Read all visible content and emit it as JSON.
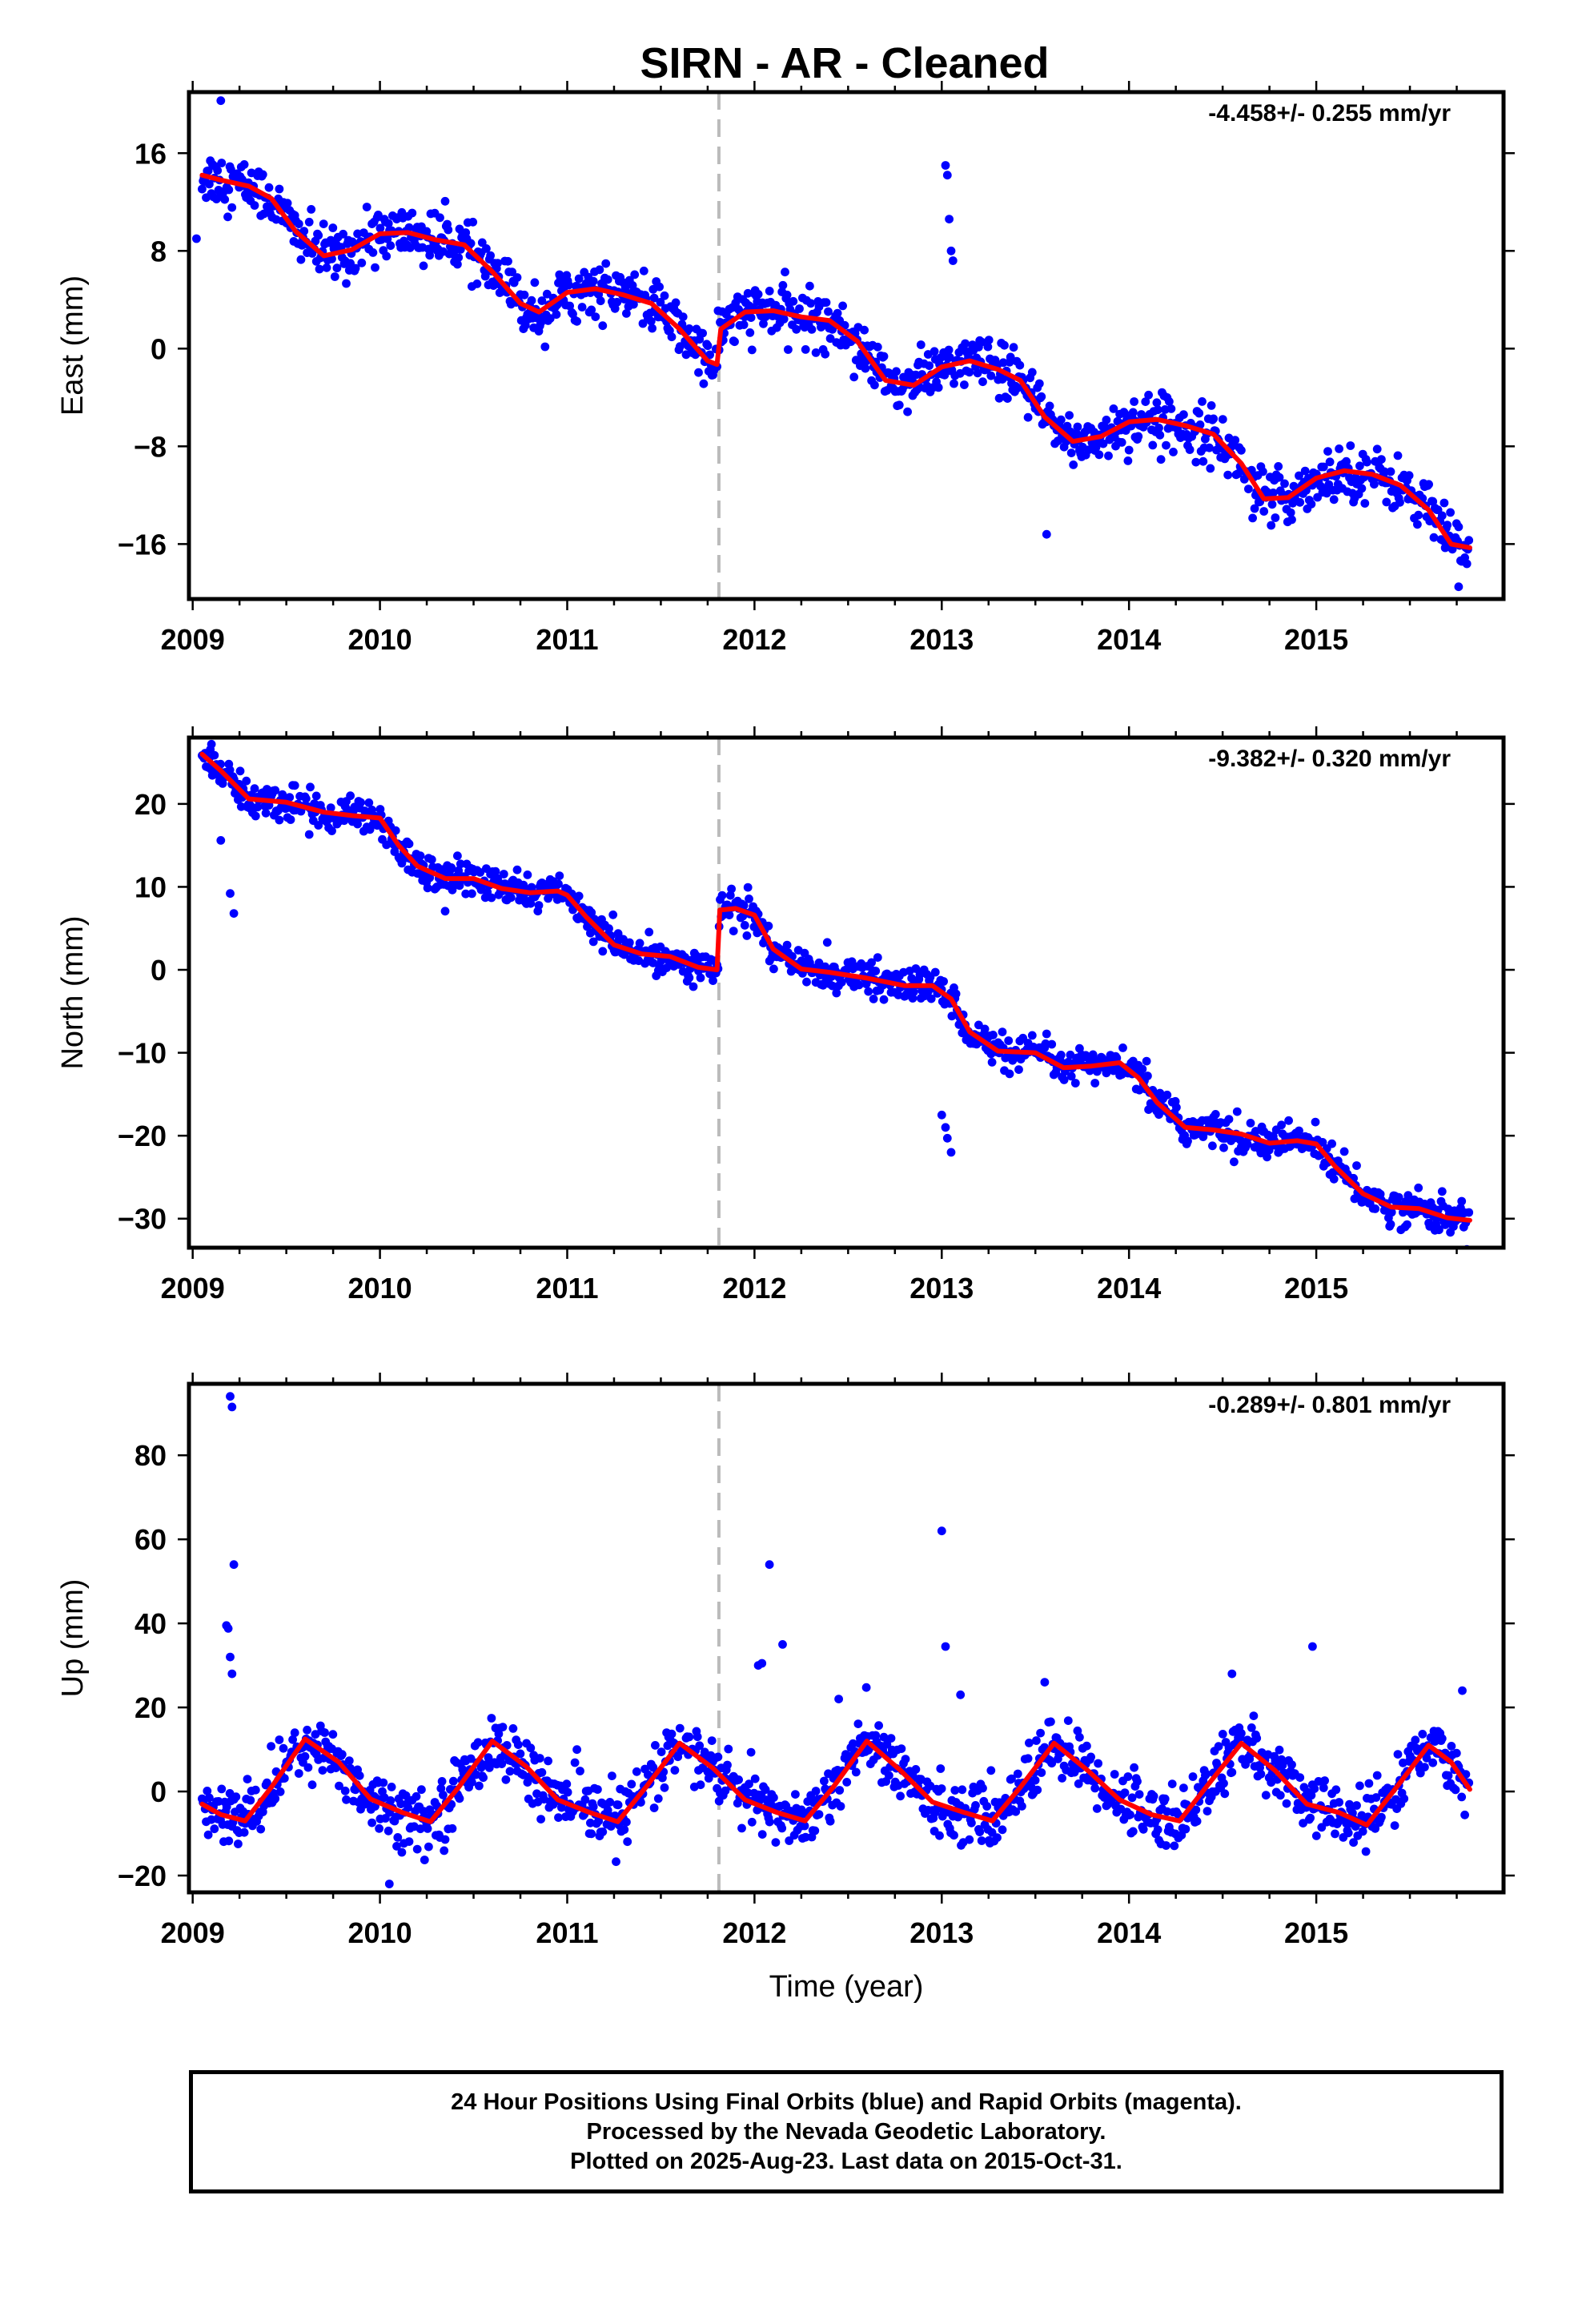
{
  "title": "SIRN  - AR - Cleaned",
  "xlabel": "Time (year)",
  "footer": {
    "line1": "24 Hour Positions Using Final Orbits (blue) and Rapid Orbits (magenta).",
    "line2": "Processed by the Nevada Geodetic Laboratory.",
    "line3": "Plotted on 2025-Aug-23. Last data on 2015-Oct-31."
  },
  "colors": {
    "data": "#0000ff",
    "model": "#ff0000",
    "offset_line": "#bbbbbb"
  },
  "chart_data": [
    {
      "type": "scatter",
      "component": "east",
      "ylabel": "East (mm)",
      "rate_text": "-4.458+/- 0.255 mm/yr",
      "xlim": [
        2008.98,
        2016.0
      ],
      "ylim": [
        -20.5,
        21.0
      ],
      "x_ticks": [
        2009,
        2010,
        2011,
        2012,
        2013,
        2014,
        2015
      ],
      "x_tick_labels": [
        "2009",
        "2010",
        "2011",
        "2012",
        "2013",
        "2014",
        "2015"
      ],
      "y_ticks": [
        -16,
        -8,
        0,
        8,
        16
      ],
      "y_tick_labels": [
        "−16",
        "−8",
        "0",
        "8",
        "16"
      ],
      "equipment_change": 2011.81,
      "series": [
        {
          "role": "model",
          "x": [
            2009.05,
            2009.15,
            2009.3,
            2009.42,
            2009.55,
            2009.7,
            2009.85,
            2010.0,
            2010.15,
            2010.3,
            2010.45,
            2010.6,
            2010.75,
            2010.85,
            2011.0,
            2011.15,
            2011.3,
            2011.45,
            2011.6,
            2011.75,
            2011.8,
            2011.82,
            2011.95,
            2012.1,
            2012.25,
            2012.4,
            2012.55,
            2012.7,
            2012.85,
            2013.0,
            2013.15,
            2013.3,
            2013.42,
            2013.55,
            2013.7,
            2013.85,
            2014.0,
            2014.15,
            2014.3,
            2014.45,
            2014.6,
            2014.72,
            2014.85,
            2015.0,
            2015.15,
            2015.3,
            2015.45,
            2015.6,
            2015.72,
            2015.82
          ],
          "y": [
            14.2,
            13.8,
            13.3,
            12.3,
            9.6,
            7.6,
            8.1,
            9.4,
            9.5,
            8.9,
            8.5,
            6.3,
            3.7,
            3.0,
            4.6,
            4.9,
            4.4,
            3.7,
            1.6,
            -1.0,
            -1.3,
            1.6,
            3.0,
            3.1,
            2.6,
            2.3,
            0.6,
            -2.6,
            -3.0,
            -1.5,
            -1.0,
            -1.7,
            -2.6,
            -5.6,
            -7.6,
            -7.2,
            -6.0,
            -5.8,
            -6.3,
            -7.0,
            -9.4,
            -12.3,
            -12.2,
            -10.6,
            -10.0,
            -10.3,
            -11.2,
            -13.2,
            -16.0,
            -16.3
          ]
        },
        {
          "role": "outliers",
          "x": [
            2009.02,
            2009.15,
            2013.02,
            2013.03,
            2013.04,
            2013.05,
            2013.06,
            2013.56,
            2015.76
          ],
          "y": [
            9.0,
            20.3,
            15.0,
            14.2,
            10.6,
            8.0,
            7.2,
            -15.2,
            -19.5
          ]
        }
      ]
    },
    {
      "type": "scatter",
      "component": "north",
      "ylabel": "North (mm)",
      "rate_text": "-9.382+/- 0.320 mm/yr",
      "xlim": [
        2008.98,
        2016.0
      ],
      "ylim": [
        -33.5,
        28.0
      ],
      "x_ticks": [
        2009,
        2010,
        2011,
        2012,
        2013,
        2014,
        2015
      ],
      "x_tick_labels": [
        "2009",
        "2010",
        "2011",
        "2012",
        "2013",
        "2014",
        "2015"
      ],
      "y_ticks": [
        -30,
        -20,
        -10,
        0,
        10,
        20
      ],
      "y_tick_labels": [
        "−30",
        "−20",
        "−10",
        "0",
        "10",
        "20"
      ],
      "equipment_change": 2011.81,
      "series": [
        {
          "role": "model",
          "x": [
            2009.05,
            2009.15,
            2009.3,
            2009.5,
            2009.7,
            2009.85,
            2010.0,
            2010.1,
            2010.2,
            2010.35,
            2010.5,
            2010.65,
            2010.8,
            2010.95,
            2011.0,
            2011.1,
            2011.25,
            2011.4,
            2011.55,
            2011.7,
            2011.8,
            2011.815,
            2011.9,
            2012.0,
            2012.1,
            2012.25,
            2012.4,
            2012.6,
            2012.8,
            2012.95,
            2013.05,
            2013.15,
            2013.3,
            2013.5,
            2013.65,
            2013.8,
            2013.95,
            2014.05,
            2014.15,
            2014.3,
            2014.45,
            2014.6,
            2014.75,
            2014.9,
            2015.0,
            2015.1,
            2015.25,
            2015.4,
            2015.55,
            2015.7,
            2015.82
          ],
          "y": [
            26.0,
            24.0,
            20.6,
            20.2,
            19.0,
            18.6,
            18.3,
            15.0,
            12.5,
            11.0,
            11.0,
            9.8,
            9.3,
            9.5,
            9.0,
            6.4,
            3.0,
            1.9,
            1.6,
            0.3,
            0.0,
            7.2,
            7.4,
            6.6,
            2.5,
            0.1,
            -0.3,
            -1.0,
            -1.9,
            -1.9,
            -3.5,
            -7.5,
            -9.8,
            -10.0,
            -11.8,
            -11.6,
            -11.2,
            -13.0,
            -16.0,
            -19.0,
            -19.3,
            -19.8,
            -20.9,
            -20.6,
            -21.0,
            -23.7,
            -27.0,
            -28.6,
            -28.8,
            -29.9,
            -30.2
          ]
        },
        {
          "role": "outliers",
          "x": [
            2009.1,
            2009.15,
            2009.2,
            2009.22,
            2013.0,
            2013.02,
            2013.03,
            2013.05
          ],
          "y": [
            27.2,
            15.6,
            9.2,
            6.8,
            -17.5,
            -19.0,
            -20.3,
            -22.0
          ]
        }
      ]
    },
    {
      "type": "scatter",
      "component": "up",
      "ylabel": "Up (mm)",
      "rate_text": "-0.289+/- 0.801 mm/yr",
      "xlim": [
        2008.98,
        2016.0
      ],
      "ylim": [
        -24.0,
        97.0
      ],
      "x_ticks": [
        2009,
        2010,
        2011,
        2012,
        2013,
        2014,
        2015
      ],
      "x_tick_labels": [
        "2009",
        "2010",
        "2011",
        "2012",
        "2013",
        "2014",
        "2015"
      ],
      "y_ticks": [
        -20,
        0,
        20,
        40,
        60,
        80
      ],
      "y_tick_labels": [
        "−20",
        "0",
        "20",
        "40",
        "60",
        "80"
      ],
      "equipment_change": 2011.81,
      "series": [
        {
          "role": "model",
          "x": [
            2009.05,
            2009.15,
            2009.28,
            2009.42,
            2009.6,
            2009.78,
            2009.95,
            2010.12,
            2010.27,
            2010.42,
            2010.6,
            2010.78,
            2010.95,
            2011.12,
            2011.27,
            2011.42,
            2011.6,
            2011.78,
            2011.95,
            2012.12,
            2012.27,
            2012.42,
            2012.6,
            2012.78,
            2012.95,
            2013.12,
            2013.27,
            2013.42,
            2013.6,
            2013.78,
            2013.95,
            2014.12,
            2014.27,
            2014.42,
            2014.6,
            2014.78,
            2014.95,
            2015.12,
            2015.27,
            2015.42,
            2015.6,
            2015.72,
            2015.82
          ],
          "y": [
            -3.0,
            -5.5,
            -7.0,
            1.0,
            12.5,
            7.0,
            -1.8,
            -5.0,
            -7.2,
            1.0,
            12.0,
            6.0,
            -2.0,
            -5.0,
            -7.2,
            1.0,
            11.5,
            5.5,
            -2.0,
            -5.0,
            -7.0,
            1.0,
            12.0,
            5.0,
            -2.5,
            -5.0,
            -7.0,
            1.0,
            11.5,
            5.0,
            -2.0,
            -5.5,
            -7.0,
            1.5,
            11.5,
            5.0,
            -3.0,
            -5.0,
            -8.0,
            0.5,
            11.0,
            7.0,
            0.5
          ]
        },
        {
          "role": "outliers",
          "x": [
            2009.2,
            2009.21,
            2009.22,
            2009.18,
            2009.19,
            2009.2,
            2009.21,
            2012.02,
            2012.04,
            2012.08,
            2012.15,
            2013.0,
            2013.02,
            2013.1,
            2012.45,
            2014.55,
            2014.98,
            2010.05,
            2013.55,
            2015.78
          ],
          "y": [
            94.0,
            91.5,
            54.0,
            39.5,
            38.8,
            32.0,
            28.0,
            30.0,
            30.5,
            54.0,
            35.0,
            62.0,
            34.5,
            23.0,
            22.0,
            28.0,
            34.5,
            -22.0,
            26.0,
            24.0
          ]
        }
      ]
    }
  ]
}
